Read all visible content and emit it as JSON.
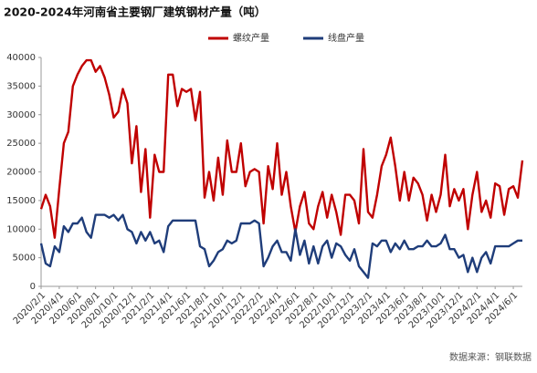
{
  "chart_data": {
    "type": "line",
    "title": "2020-2024年河南省主要钢厂建筑钢材产量（吨）",
    "source": "数据来源：钢联数据",
    "categories": [
      "2020/2/1",
      null,
      null,
      null,
      "2020/4/1",
      null,
      null,
      null,
      "2020/6/1",
      null,
      null,
      null,
      "2020/8/1",
      null,
      null,
      null,
      "2020/10/1",
      null,
      null,
      null,
      "2020/12/1",
      null,
      null,
      null,
      "2021/2/1",
      null,
      null,
      null,
      "2021/4/1",
      null,
      null,
      null,
      "2021/6/1",
      null,
      null,
      null,
      "2021/8/1",
      null,
      null,
      null,
      "2021/10/1",
      null,
      null,
      null,
      "2021/12/1",
      null,
      null,
      null,
      "2022/2/1",
      null,
      null,
      null,
      "2022/4/1",
      null,
      null,
      null,
      "2022/6/1",
      null,
      null,
      null,
      "2022/8/1",
      null,
      null,
      null,
      "2022/10/1",
      null,
      null,
      null,
      "2022/12/1",
      null,
      null,
      null,
      "2023/2/1",
      null,
      null,
      null,
      "2023/4/1",
      null,
      null,
      null,
      "2023/6/1",
      null,
      null,
      null,
      "2023/8/1",
      null,
      null,
      null,
      "2023/10/1",
      null,
      null,
      null,
      "2023/12/1",
      null,
      null,
      null,
      "2024/2/1",
      null,
      null,
      null,
      "2024/4/1",
      null,
      null,
      null,
      "2024/6/1",
      null,
      null
    ],
    "series": [
      {
        "name": "螺纹产量",
        "color": "#c00000",
        "values": [
          13500,
          16000,
          14000,
          8500,
          17000,
          25000,
          27000,
          35000,
          37000,
          38500,
          39500,
          39500,
          37500,
          38500,
          36500,
          33500,
          29500,
          30500,
          34500,
          32000,
          21500,
          28000,
          16500,
          24000,
          12000,
          23000,
          20000,
          20000,
          37000,
          37000,
          31500,
          34500,
          34000,
          34500,
          29000,
          34000,
          15500,
          20000,
          15000,
          22500,
          16000,
          25500,
          20000,
          20000,
          25000,
          17500,
          20000,
          20500,
          20000,
          11000,
          21000,
          17000,
          25000,
          16000,
          20000,
          14000,
          9500,
          14000,
          16500,
          11000,
          10000,
          14000,
          16500,
          12000,
          16000,
          13000,
          9000,
          16000,
          16000,
          15000,
          11000,
          24000,
          13000,
          12000,
          16000,
          21000,
          23000,
          26000,
          21000,
          15000,
          20000,
          15000,
          19000,
          18000,
          16000,
          11500,
          16000,
          13000,
          16000,
          23000,
          14000,
          17000,
          15000,
          17000,
          10000,
          16000,
          20000,
          13000,
          15000,
          12000,
          18000,
          17500,
          12500,
          17000,
          17500,
          15500,
          22000
        ]
      },
      {
        "name": "线盘产量",
        "color": "#1f3d7a",
        "values": [
          7500,
          4000,
          3500,
          7000,
          6000,
          10500,
          9500,
          11000,
          11000,
          12000,
          9500,
          8500,
          12500,
          12500,
          12500,
          12000,
          12500,
          11500,
          12500,
          10000,
          9500,
          7500,
          9500,
          8000,
          9500,
          7500,
          8000,
          6000,
          10500,
          11500,
          11500,
          11500,
          11500,
          11500,
          11500,
          7000,
          6500,
          3500,
          4500,
          6000,
          6500,
          8000,
          7500,
          8000,
          11000,
          11000,
          11000,
          11500,
          11000,
          3500,
          5000,
          7000,
          8000,
          6000,
          6000,
          4500,
          10000,
          5500,
          8000,
          4000,
          7000,
          4000,
          7000,
          8000,
          5000,
          7500,
          7000,
          5500,
          4500,
          6500,
          3500,
          2500,
          1500,
          7500,
          7000,
          8000,
          8000,
          6000,
          7500,
          6500,
          8000,
          6500,
          6500,
          7000,
          7000,
          8000,
          7000,
          7000,
          7500,
          9000,
          6500,
          6500,
          5000,
          5500,
          2500,
          5000,
          2500,
          5000,
          6000,
          4000,
          7000,
          7000,
          7000,
          7000,
          7500,
          8000,
          8000
        ]
      }
    ],
    "ylim": [
      0,
      40000
    ],
    "yticks": [
      0,
      5000,
      10000,
      15000,
      20000,
      25000,
      30000,
      35000,
      40000
    ]
  }
}
